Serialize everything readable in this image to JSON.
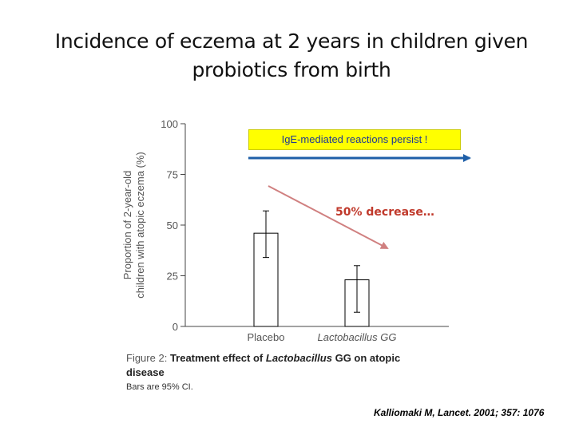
{
  "slide": {
    "title_line1": "Incidence of eczema at 2 years in children given",
    "title_line2": "probiotics from birth",
    "citation": "Kalliomaki M, Lancet. 2001; 357: 1076"
  },
  "annotations": {
    "persist": "IgE-mediated reactions persist !",
    "decrease": "50% decrease…",
    "persist_arrow_color": "#1f5fa8",
    "decrease_arrow_color": "#d08080"
  },
  "caption": {
    "figure_label": "Figure 2:",
    "text_part1": "Treatment effect of",
    "text_italic": "Lactobacillus",
    "text_part2": "GG on atopic",
    "line2": "disease",
    "line3": "Bars are 95% CI."
  },
  "chart_data": {
    "type": "bar",
    "categories": [
      "Placebo",
      "Lactobacillus GG"
    ],
    "values": [
      46,
      23
    ],
    "ci_low": [
      34,
      7
    ],
    "ci_high": [
      57,
      30
    ],
    "ylabel_line1": "Proportion of 2-year-old",
    "ylabel_line2": "children with atopic eczema (%)",
    "ylim": [
      0,
      100
    ],
    "yticks": [
      0,
      25,
      50,
      75,
      100
    ],
    "ytick_labels": [
      "0",
      "25",
      "50",
      "75",
      "100"
    ],
    "grid": false,
    "colors": {
      "bar_fill": "#ffffff",
      "stroke": "#000000",
      "axis": "#444444"
    }
  }
}
